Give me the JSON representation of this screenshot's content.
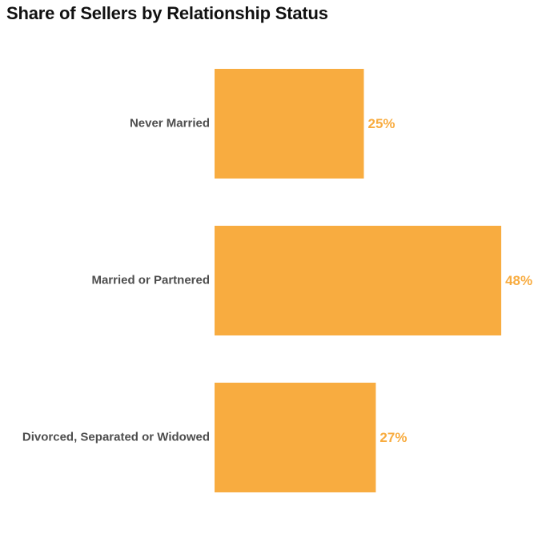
{
  "chart_data": {
    "type": "bar",
    "orientation": "horizontal",
    "title": "Share of Sellers by Relationship Status",
    "categories": [
      "Never Married",
      "Married or Partnered",
      "Divorced, Separated or Widowed"
    ],
    "values": [
      25,
      48,
      27
    ],
    "value_labels": [
      "25%",
      "48%",
      "27%"
    ],
    "xlim": [
      0,
      50
    ],
    "grid": false,
    "bar_color": "#F8AC40",
    "label_color": "#4D4D4D",
    "value_label_color": "#F8AC40"
  }
}
